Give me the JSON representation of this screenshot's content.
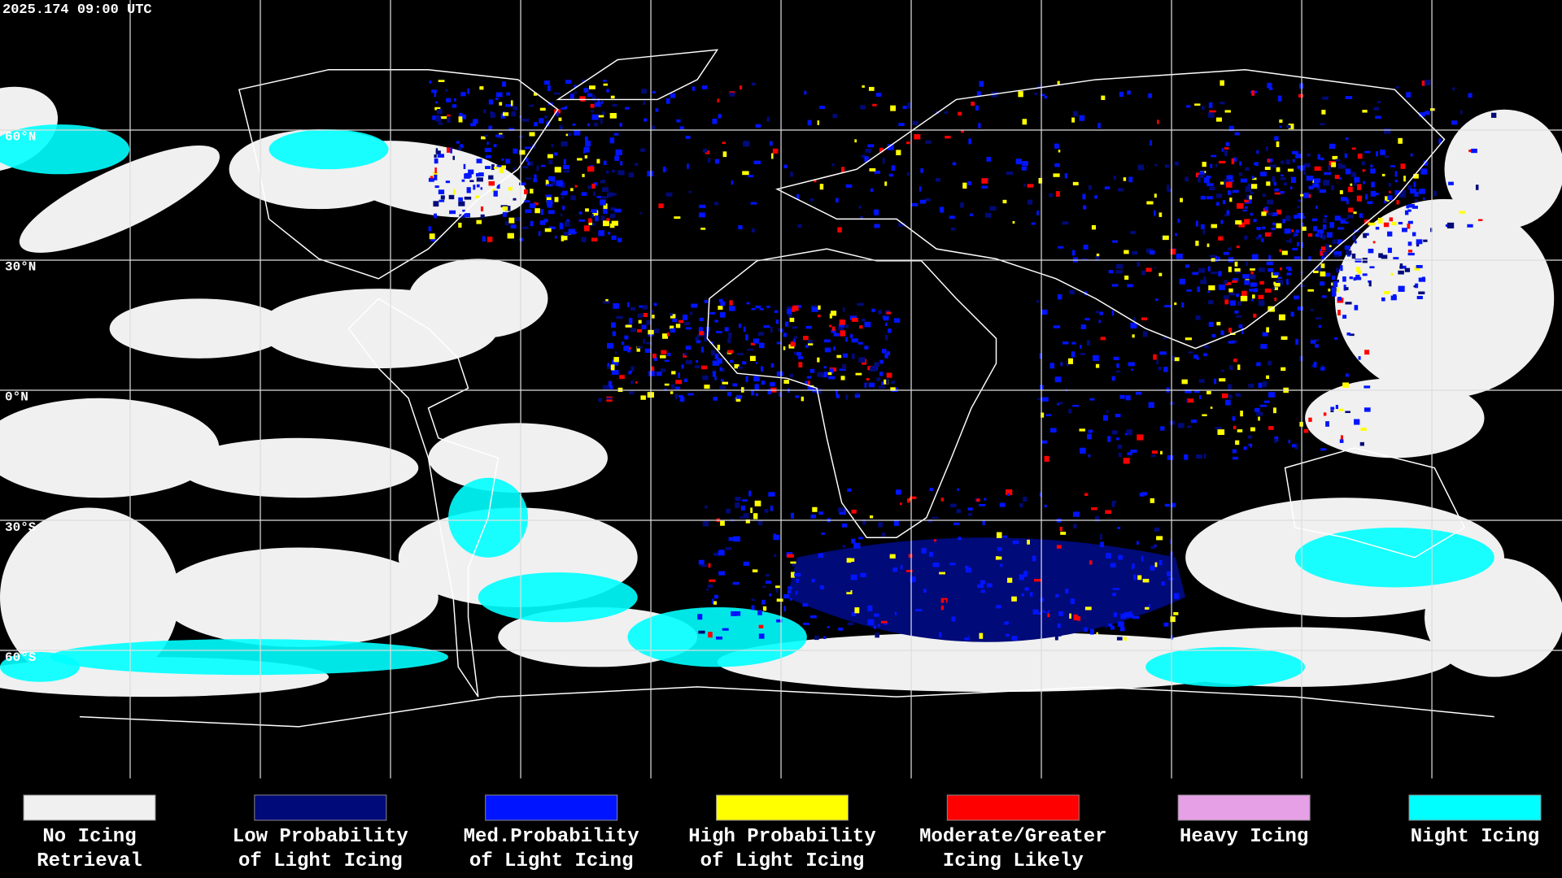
{
  "header": {
    "timestamp": "2025.174 09:00 UTC"
  },
  "map": {
    "latitude_labels": [
      "60°N",
      "30°N",
      "0°N",
      "30°S",
      "60°S"
    ]
  },
  "legend": {
    "items": [
      {
        "color": "#f0f0f0",
        "lines": [
          "No Icing",
          "Retrieval"
        ]
      },
      {
        "color": "#000a78",
        "lines": [
          "Low Probability",
          "of Light Icing"
        ]
      },
      {
        "color": "#0014ff",
        "lines": [
          "Med.Probability",
          "of Light Icing"
        ]
      },
      {
        "color": "#ffff00",
        "lines": [
          "High Probability",
          "of Light Icing"
        ]
      },
      {
        "color": "#ff0000",
        "lines": [
          "Moderate/Greater",
          "Icing Likely"
        ]
      },
      {
        "color": "#e6a0e6",
        "lines": [
          "Heavy Icing"
        ]
      },
      {
        "color": "#00ffff",
        "lines": [
          "Night Icing"
        ]
      }
    ]
  }
}
